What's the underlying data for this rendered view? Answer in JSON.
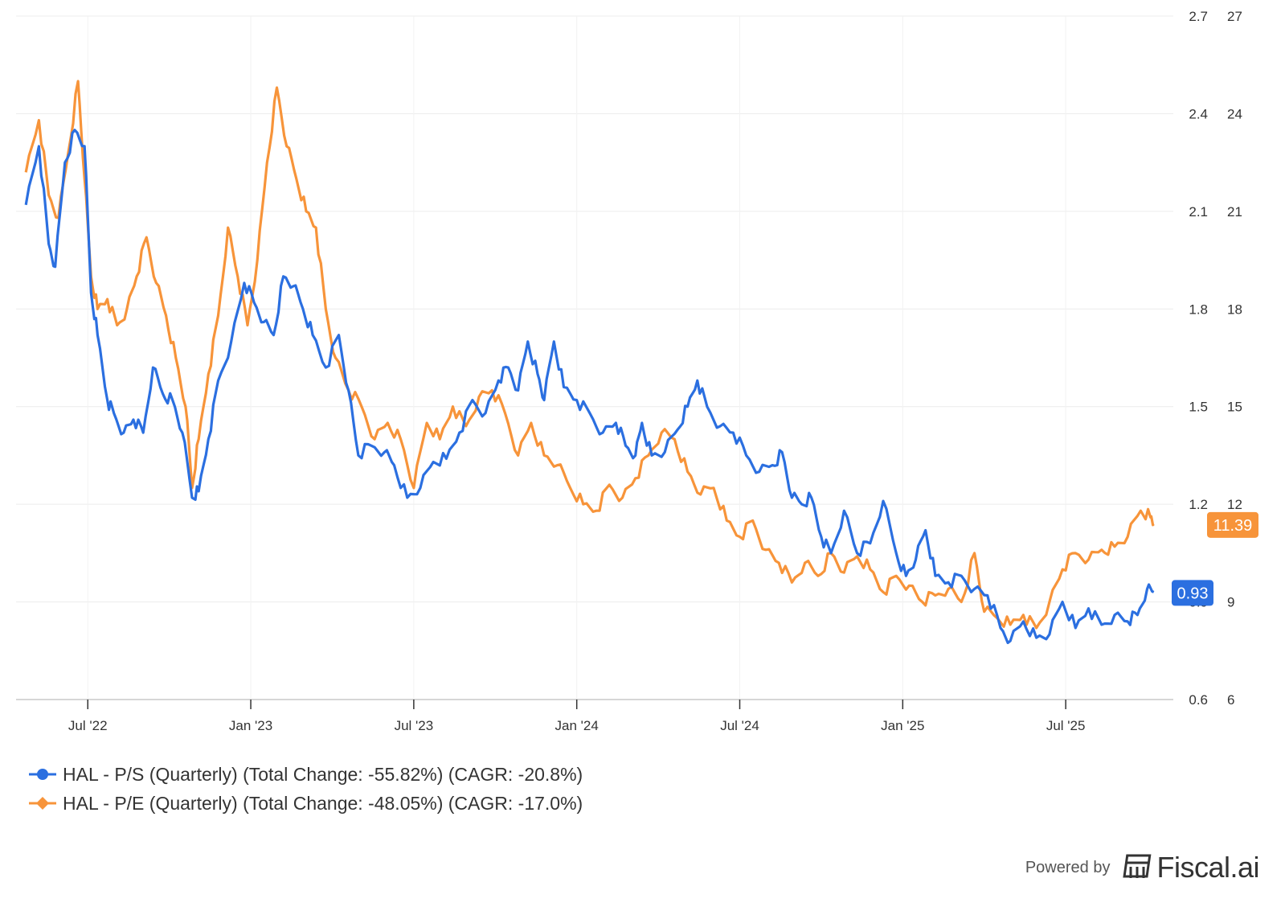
{
  "chart_data": {
    "type": "line",
    "title": "",
    "x_ticks": [
      "Jul '22",
      "Jan '23",
      "Jul '23",
      "Jan '24",
      "Jul '24",
      "Jan '25",
      "Jul '25"
    ],
    "x_range": [
      2022.28,
      2025.83
    ],
    "left_axis": {
      "label": "P/S",
      "ticks": [
        "0.6",
        "0.9",
        "1.2",
        "1.5",
        "1.8",
        "2.1",
        "2.4",
        "2.7"
      ],
      "ylim": [
        0.6,
        2.7
      ]
    },
    "right_axis": {
      "label": "P/E",
      "ticks": [
        "6",
        "9",
        "12",
        "15",
        "18",
        "21",
        "24",
        "27"
      ],
      "ylim": [
        6,
        27
      ]
    },
    "grid": true,
    "legend_position": "bottom-left",
    "series": [
      {
        "name": "HAL - P/S (Quarterly)",
        "legend": "HAL - P/S (Quarterly) (Total Change: -55.82%) (CAGR: -20.8%)",
        "axis": "left",
        "color": "#2b6fe0",
        "last_label": "0.93",
        "points": [
          [
            2022.31,
            2.12
          ],
          [
            2022.35,
            2.3
          ],
          [
            2022.38,
            2.0
          ],
          [
            2022.4,
            1.93
          ],
          [
            2022.43,
            2.25
          ],
          [
            2022.46,
            2.35
          ],
          [
            2022.49,
            2.3
          ],
          [
            2022.51,
            1.85
          ],
          [
            2022.53,
            1.72
          ],
          [
            2022.56,
            1.52
          ],
          [
            2022.58,
            1.48
          ],
          [
            2022.61,
            1.42
          ],
          [
            2022.64,
            1.46
          ],
          [
            2022.67,
            1.42
          ],
          [
            2022.7,
            1.62
          ],
          [
            2022.73,
            1.54
          ],
          [
            2022.76,
            1.52
          ],
          [
            2022.79,
            1.42
          ],
          [
            2022.82,
            1.22
          ],
          [
            2022.84,
            1.24
          ],
          [
            2022.87,
            1.4
          ],
          [
            2022.9,
            1.58
          ],
          [
            2022.94,
            1.7
          ],
          [
            2022.98,
            1.88
          ],
          [
            2023.01,
            1.82
          ],
          [
            2023.04,
            1.76
          ],
          [
            2023.07,
            1.72
          ],
          [
            2023.1,
            1.9
          ],
          [
            2023.13,
            1.87
          ],
          [
            2023.16,
            1.8
          ],
          [
            2023.19,
            1.72
          ],
          [
            2023.23,
            1.62
          ],
          [
            2023.27,
            1.72
          ],
          [
            2023.3,
            1.55
          ],
          [
            2023.33,
            1.35
          ],
          [
            2023.37,
            1.38
          ],
          [
            2023.41,
            1.36
          ],
          [
            2023.44,
            1.32
          ],
          [
            2023.48,
            1.22
          ],
          [
            2023.52,
            1.25
          ],
          [
            2023.56,
            1.33
          ],
          [
            2023.6,
            1.34
          ],
          [
            2023.64,
            1.42
          ],
          [
            2023.68,
            1.52
          ],
          [
            2023.72,
            1.48
          ],
          [
            2023.76,
            1.58
          ],
          [
            2023.79,
            1.62
          ],
          [
            2023.82,
            1.55
          ],
          [
            2023.85,
            1.7
          ],
          [
            2023.88,
            1.6
          ],
          [
            2023.9,
            1.52
          ],
          [
            2023.93,
            1.7
          ],
          [
            2023.96,
            1.56
          ],
          [
            2024.0,
            1.52
          ],
          [
            2024.04,
            1.48
          ],
          [
            2024.08,
            1.42
          ],
          [
            2024.12,
            1.45
          ],
          [
            2024.15,
            1.38
          ],
          [
            2024.18,
            1.35
          ],
          [
            2024.2,
            1.45
          ],
          [
            2024.23,
            1.35
          ],
          [
            2024.27,
            1.36
          ],
          [
            2024.31,
            1.43
          ],
          [
            2024.34,
            1.5
          ],
          [
            2024.37,
            1.58
          ],
          [
            2024.4,
            1.5
          ],
          [
            2024.44,
            1.44
          ],
          [
            2024.48,
            1.42
          ],
          [
            2024.52,
            1.35
          ],
          [
            2024.56,
            1.3
          ],
          [
            2024.6,
            1.32
          ],
          [
            2024.63,
            1.36
          ],
          [
            2024.66,
            1.22
          ],
          [
            2024.69,
            1.2
          ],
          [
            2024.72,
            1.22
          ],
          [
            2024.75,
            1.1
          ],
          [
            2024.78,
            1.05
          ],
          [
            2024.82,
            1.18
          ],
          [
            2024.86,
            1.05
          ],
          [
            2024.9,
            1.08
          ],
          [
            2024.94,
            1.21
          ],
          [
            2024.98,
            1.05
          ],
          [
            2025.01,
            0.98
          ],
          [
            2025.04,
            1.03
          ],
          [
            2025.07,
            1.12
          ],
          [
            2025.1,
            0.98
          ],
          [
            2025.14,
            0.96
          ],
          [
            2025.18,
            0.98
          ],
          [
            2025.22,
            0.94
          ],
          [
            2025.26,
            0.92
          ],
          [
            2025.3,
            0.82
          ],
          [
            2025.33,
            0.78
          ],
          [
            2025.37,
            0.84
          ],
          [
            2025.41,
            0.79
          ],
          [
            2025.45,
            0.8
          ],
          [
            2025.49,
            0.9
          ],
          [
            2025.53,
            0.82
          ],
          [
            2025.57,
            0.88
          ],
          [
            2025.61,
            0.83
          ],
          [
            2025.65,
            0.86
          ],
          [
            2025.69,
            0.84
          ],
          [
            2025.72,
            0.86
          ],
          [
            2025.75,
            0.94
          ],
          [
            2025.77,
            0.93
          ]
        ]
      },
      {
        "name": "HAL - P/E (Quarterly)",
        "legend": "HAL - P/E (Quarterly) (Total Change: -48.05%) (CAGR: -17.0%)",
        "axis": "right",
        "color": "#f7943a",
        "last_label": "11.39",
        "points": [
          [
            2022.31,
            22.2
          ],
          [
            2022.35,
            23.8
          ],
          [
            2022.38,
            21.5
          ],
          [
            2022.41,
            20.8
          ],
          [
            2022.44,
            22.8
          ],
          [
            2022.47,
            25.0
          ],
          [
            2022.49,
            22.0
          ],
          [
            2022.51,
            19.0
          ],
          [
            2022.53,
            18.0
          ],
          [
            2022.56,
            18.3
          ],
          [
            2022.59,
            17.5
          ],
          [
            2022.62,
            18.0
          ],
          [
            2022.65,
            19.0
          ],
          [
            2022.68,
            20.2
          ],
          [
            2022.71,
            18.8
          ],
          [
            2022.74,
            17.8
          ],
          [
            2022.77,
            16.5
          ],
          [
            2022.8,
            15.0
          ],
          [
            2022.82,
            12.5
          ],
          [
            2022.84,
            14.0
          ],
          [
            2022.87,
            16.0
          ],
          [
            2022.9,
            17.8
          ],
          [
            2022.93,
            20.5
          ],
          [
            2022.96,
            19.0
          ],
          [
            2022.99,
            17.5
          ],
          [
            2023.02,
            19.5
          ],
          [
            2023.05,
            22.5
          ],
          [
            2023.08,
            24.8
          ],
          [
            2023.11,
            23.0
          ],
          [
            2023.14,
            22.0
          ],
          [
            2023.17,
            21.0
          ],
          [
            2023.2,
            20.5
          ],
          [
            2023.23,
            18.0
          ],
          [
            2023.26,
            16.5
          ],
          [
            2023.3,
            15.5
          ],
          [
            2023.34,
            15.0
          ],
          [
            2023.38,
            14.0
          ],
          [
            2023.42,
            14.5
          ],
          [
            2023.46,
            14.0
          ],
          [
            2023.5,
            12.5
          ],
          [
            2023.54,
            14.5
          ],
          [
            2023.58,
            14.0
          ],
          [
            2023.62,
            15.0
          ],
          [
            2023.66,
            14.4
          ],
          [
            2023.7,
            15.3
          ],
          [
            2023.74,
            15.5
          ],
          [
            2023.78,
            14.8
          ],
          [
            2023.82,
            13.5
          ],
          [
            2023.86,
            14.5
          ],
          [
            2023.9,
            13.5
          ],
          [
            2023.94,
            13.2
          ],
          [
            2023.98,
            12.5
          ],
          [
            2024.02,
            12.0
          ],
          [
            2024.06,
            11.8
          ],
          [
            2024.1,
            12.6
          ],
          [
            2024.14,
            12.2
          ],
          [
            2024.18,
            12.8
          ],
          [
            2024.22,
            13.5
          ],
          [
            2024.26,
            14.2
          ],
          [
            2024.3,
            14.0
          ],
          [
            2024.34,
            13.0
          ],
          [
            2024.38,
            12.3
          ],
          [
            2024.42,
            12.5
          ],
          [
            2024.46,
            11.5
          ],
          [
            2024.5,
            11.0
          ],
          [
            2024.54,
            11.5
          ],
          [
            2024.58,
            10.6
          ],
          [
            2024.62,
            10.2
          ],
          [
            2024.66,
            9.6
          ],
          [
            2024.7,
            10.2
          ],
          [
            2024.74,
            9.8
          ],
          [
            2024.78,
            10.5
          ],
          [
            2024.82,
            9.9
          ],
          [
            2024.86,
            10.4
          ],
          [
            2024.9,
            10.0
          ],
          [
            2024.94,
            9.3
          ],
          [
            2024.98,
            9.8
          ],
          [
            2025.02,
            9.5
          ],
          [
            2025.06,
            9.0
          ],
          [
            2025.1,
            9.2
          ],
          [
            2025.14,
            9.4
          ],
          [
            2025.18,
            9.0
          ],
          [
            2025.22,
            10.5
          ],
          [
            2025.25,
            8.7
          ],
          [
            2025.29,
            8.5
          ],
          [
            2025.33,
            8.3
          ],
          [
            2025.37,
            8.6
          ],
          [
            2025.41,
            8.2
          ],
          [
            2025.45,
            9.0
          ],
          [
            2025.49,
            10.0
          ],
          [
            2025.53,
            10.5
          ],
          [
            2025.57,
            10.3
          ],
          [
            2025.61,
            10.6
          ],
          [
            2025.65,
            10.7
          ],
          [
            2025.69,
            11.0
          ],
          [
            2025.73,
            11.8
          ],
          [
            2025.76,
            11.6
          ],
          [
            2025.77,
            11.39
          ]
        ]
      }
    ]
  },
  "footer": {
    "powered_by": "Powered by",
    "brand": "Fiscal.ai",
    "brand_icon": "fiscal-ai-logo-icon"
  }
}
